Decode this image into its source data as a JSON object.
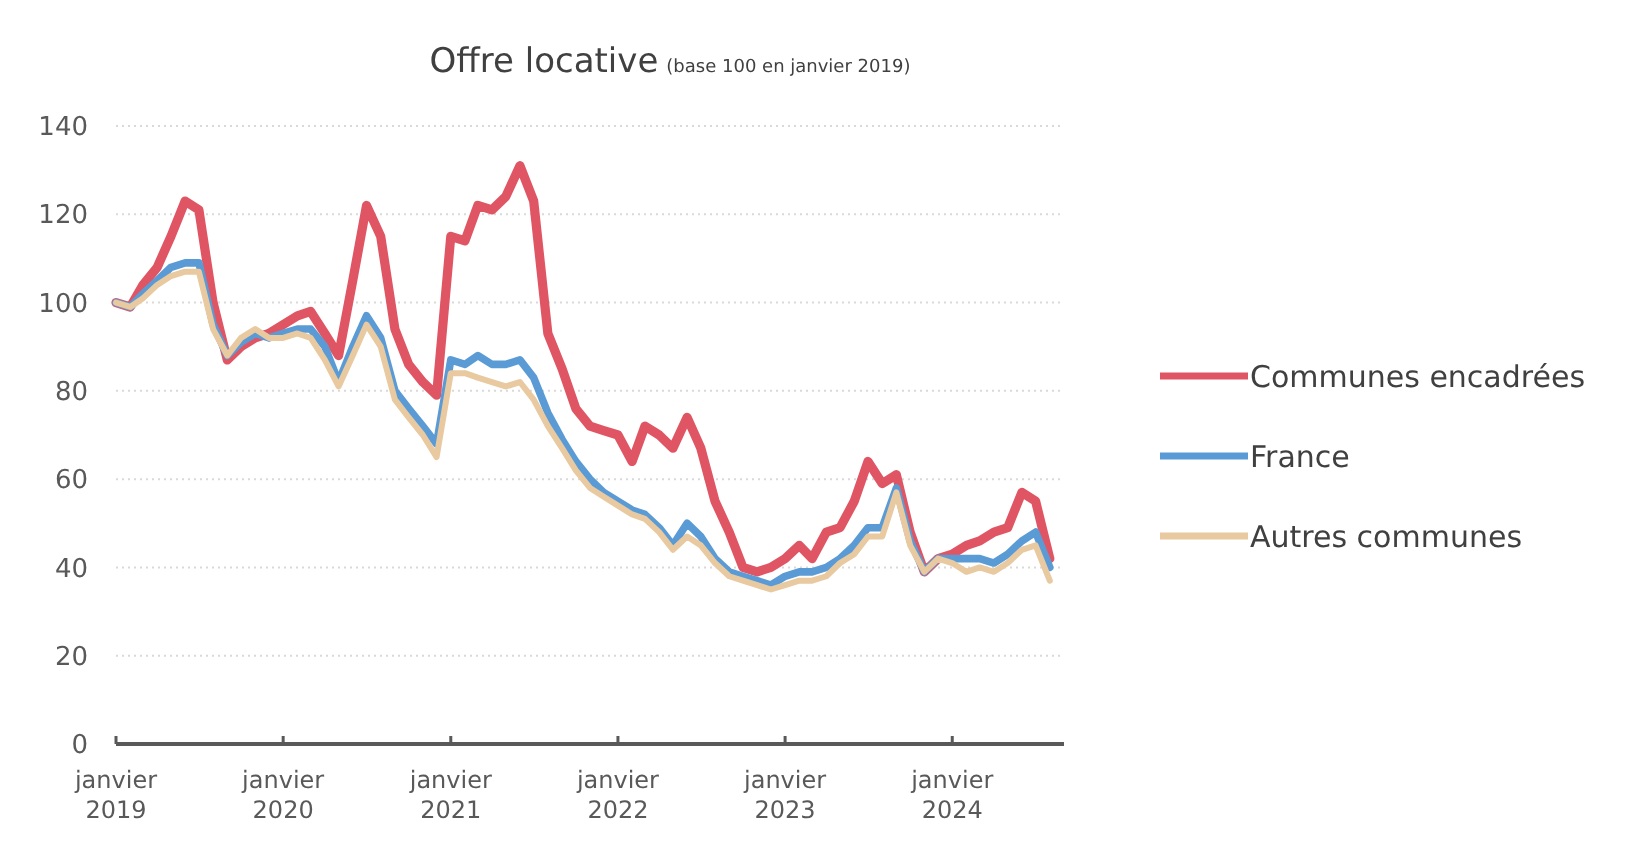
{
  "chart_data": {
    "type": "line",
    "title": "Offre locative",
    "subtitle": "(base 100 en janvier 2019)",
    "x": [
      "2019-01",
      "2019-02",
      "2019-03",
      "2019-04",
      "2019-05",
      "2019-06",
      "2019-07",
      "2019-08",
      "2019-09",
      "2019-10",
      "2019-11",
      "2019-12",
      "2020-01",
      "2020-02",
      "2020-03",
      "2020-04",
      "2020-05",
      "2020-06",
      "2020-07",
      "2020-08",
      "2020-09",
      "2020-10",
      "2020-11",
      "2020-12",
      "2021-01",
      "2021-02",
      "2021-03",
      "2021-04",
      "2021-05",
      "2021-06",
      "2021-07",
      "2021-08",
      "2021-09",
      "2021-10",
      "2021-11",
      "2021-12",
      "2022-01",
      "2022-02",
      "2022-03",
      "2022-04",
      "2022-05",
      "2022-06",
      "2022-07",
      "2022-08",
      "2022-09",
      "2022-10",
      "2022-11",
      "2022-12",
      "2023-01",
      "2023-02",
      "2023-03",
      "2023-04",
      "2023-05",
      "2023-06",
      "2023-07",
      "2023-08",
      "2023-09",
      "2023-10",
      "2023-11",
      "2023-12",
      "2024-01",
      "2024-02",
      "2024-03",
      "2024-04",
      "2024-05",
      "2024-06",
      "2024-07",
      "2024-08"
    ],
    "series": [
      {
        "name": "Communes encadrées",
        "color": "#e05563",
        "values": [
          100,
          99,
          104,
          108,
          115,
          123,
          121,
          100,
          87,
          90,
          92,
          93,
          95,
          97,
          98,
          93,
          88,
          105,
          122,
          115,
          94,
          86,
          82,
          79,
          115,
          114,
          122,
          121,
          124,
          131,
          123,
          93,
          85,
          76,
          72,
          71,
          70,
          64,
          72,
          70,
          67,
          74,
          67,
          55,
          48,
          40,
          39,
          40,
          42,
          45,
          42,
          48,
          49,
          55,
          64,
          59,
          61,
          48,
          39,
          42,
          43,
          45,
          46,
          48,
          49,
          57,
          55,
          42
        ]
      },
      {
        "name": "France",
        "color": "#5b9bd5",
        "values": [
          100,
          99,
          102,
          105,
          108,
          109,
          109,
          95,
          88,
          91,
          93,
          92,
          93,
          94,
          94,
          90,
          82,
          90,
          97,
          92,
          80,
          76,
          72,
          68,
          87,
          86,
          88,
          86,
          86,
          87,
          83,
          75,
          69,
          64,
          60,
          57,
          55,
          53,
          52,
          49,
          45,
          50,
          47,
          42,
          39,
          38,
          37,
          36,
          38,
          39,
          39,
          40,
          42,
          45,
          49,
          49,
          58,
          46,
          39,
          42,
          42,
          42,
          42,
          41,
          43,
          46,
          48,
          40
        ]
      },
      {
        "name": "Autres communes",
        "color": "#e8c9a0",
        "values": [
          100,
          99,
          101,
          104,
          106,
          107,
          107,
          94,
          88,
          92,
          94,
          92,
          92,
          93,
          92,
          87,
          81,
          88,
          95,
          90,
          78,
          74,
          70,
          65,
          84,
          84,
          83,
          82,
          81,
          82,
          78,
          72,
          67,
          62,
          58,
          56,
          54,
          52,
          51,
          48,
          44,
          47,
          45,
          41,
          38,
          37,
          36,
          35,
          36,
          37,
          37,
          38,
          41,
          43,
          47,
          47,
          57,
          45,
          39,
          42,
          41,
          39,
          40,
          39,
          41,
          44,
          45,
          37
        ]
      }
    ],
    "xlim": [
      "2019-01",
      "2024-09"
    ],
    "xticks": [
      {
        "value": "2019-01",
        "label": "janvier 2019"
      },
      {
        "value": "2020-01",
        "label": "janvier 2020"
      },
      {
        "value": "2021-01",
        "label": "janvier 2021"
      },
      {
        "value": "2022-01",
        "label": "janvier 2022"
      },
      {
        "value": "2023-01",
        "label": "janvier 2023"
      },
      {
        "value": "2024-01",
        "label": "janvier 2024"
      }
    ],
    "ylim": [
      0,
      140
    ],
    "yticks": [
      0,
      20,
      40,
      60,
      80,
      100,
      120,
      140
    ],
    "grid": "y",
    "legend": "right",
    "marker": "none",
    "line_style": "solid"
  }
}
